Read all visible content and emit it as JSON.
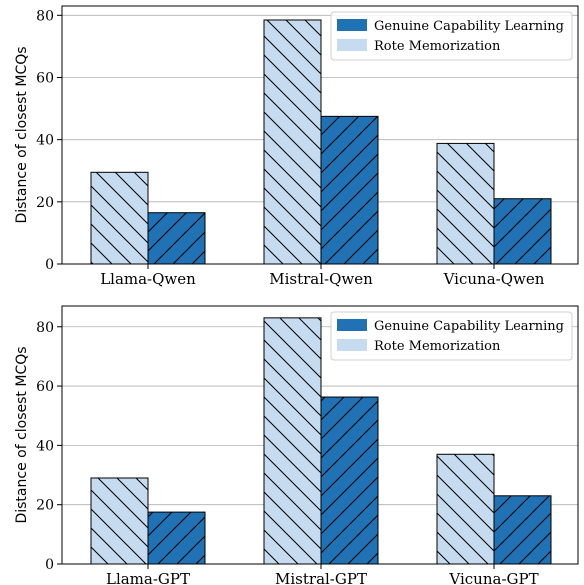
{
  "chart_data": [
    {
      "type": "bar",
      "categories": [
        "Llama-Qwen",
        "Mistral-Qwen",
        "Vicuna-Qwen"
      ],
      "series": [
        {
          "name": "Rote Memorization",
          "values": [
            29.5,
            78.5,
            38.8
          ],
          "color": "#c6dbef",
          "hatch": "backslash"
        },
        {
          "name": "Genuine Capability Learning",
          "values": [
            16.5,
            47.5,
            21.0
          ],
          "color": "#2171b5",
          "hatch": "slash"
        }
      ],
      "legend_order": [
        "Genuine Capability Learning",
        "Rote Memorization"
      ],
      "legend_position": "top-right",
      "ylabel": "Distance of closest MCQs",
      "xlabel": "",
      "ylim": [
        0,
        83
      ],
      "yticks": [
        0,
        20,
        40,
        60,
        80
      ],
      "grid": "horizontal"
    },
    {
      "type": "bar",
      "categories": [
        "Llama-GPT",
        "Mistral-GPT",
        "Vicuna-GPT"
      ],
      "series": [
        {
          "name": "Rote Memorization",
          "values": [
            29.0,
            83.0,
            37.0
          ],
          "color": "#c6dbef",
          "hatch": "backslash"
        },
        {
          "name": "Genuine Capability Learning",
          "values": [
            17.5,
            56.3,
            23.0
          ],
          "color": "#2171b5",
          "hatch": "slash"
        }
      ],
      "legend_order": [
        "Genuine Capability Learning",
        "Rote Memorization"
      ],
      "legend_position": "top-right",
      "ylabel": "Distance of closest MCQs",
      "xlabel": "",
      "ylim": [
        0,
        87
      ],
      "yticks": [
        0,
        20,
        40,
        60,
        80
      ],
      "grid": "horizontal"
    }
  ]
}
